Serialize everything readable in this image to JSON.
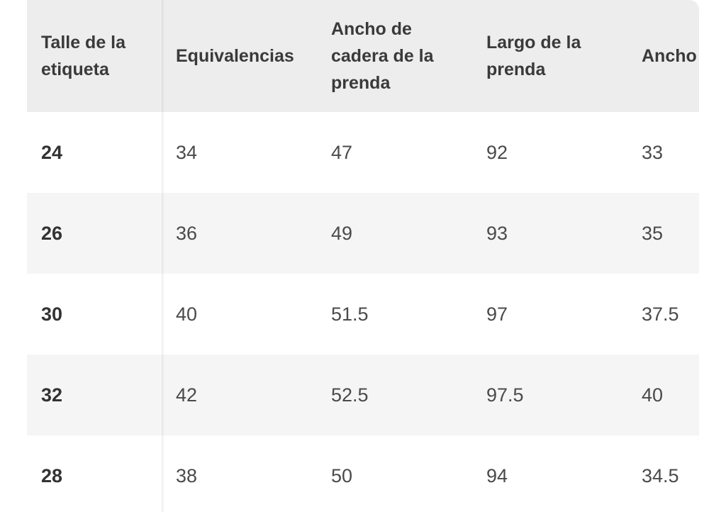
{
  "size_table": {
    "headers": [
      "Talle de la\netiqueta",
      "Equivalencias",
      "Ancho de\ncadera de la\nprenda",
      "Largo de la\nprenda",
      "Ancho de\ncintura de la\nprenda"
    ],
    "rows": [
      {
        "label": "24",
        "values": [
          "34",
          "47",
          "92",
          "33"
        ]
      },
      {
        "label": "26",
        "values": [
          "36",
          "49",
          "93",
          "35"
        ]
      },
      {
        "label": "30",
        "values": [
          "40",
          "51.5",
          "97",
          "37.5"
        ]
      },
      {
        "label": "32",
        "values": [
          "42",
          "52.5",
          "97.5",
          "40"
        ]
      },
      {
        "label": "28",
        "values": [
          "38",
          "50",
          "94",
          "34.5"
        ]
      }
    ]
  },
  "colors": {
    "header_bg": "#ededed",
    "row_alt_bg": "#f5f5f5",
    "text": "#3a3a3a"
  }
}
